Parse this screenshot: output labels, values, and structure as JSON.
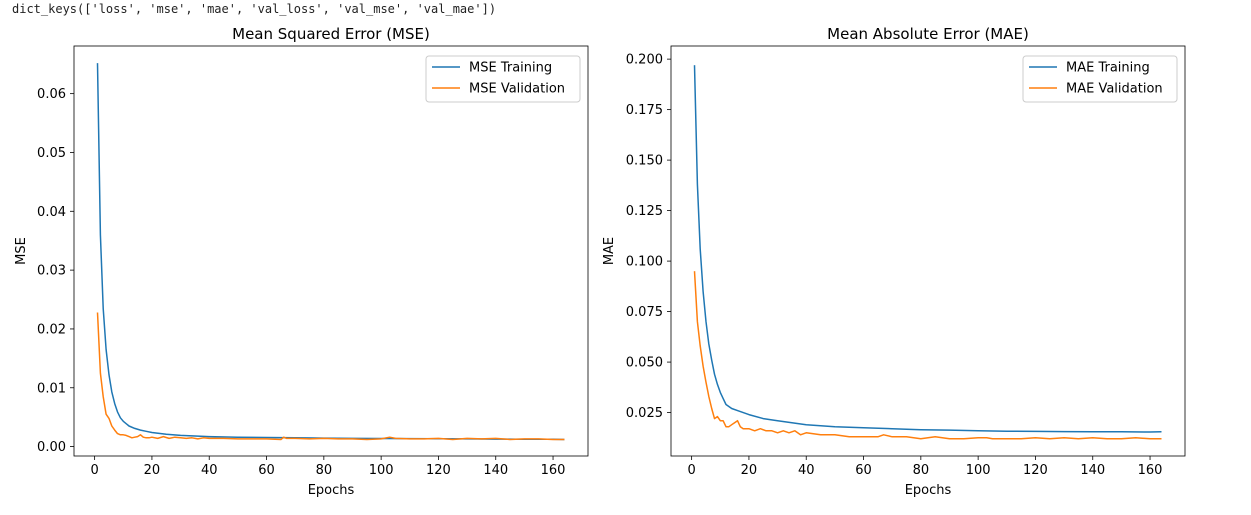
{
  "output_text": "dict_keys(['loss', 'mse', 'mae', 'val_loss', 'val_mse', 'val_mae'])",
  "colors": {
    "training": "#1f77b4",
    "validation": "#ff7f0e"
  },
  "chart_data": [
    {
      "type": "line",
      "title": "Mean Squared Error (MSE)",
      "xlabel": "Epochs",
      "ylabel": "MSE",
      "xlim": [
        -7.2,
        172.2
      ],
      "ylim": [
        -0.0016,
        0.0681
      ],
      "xticks": [
        0,
        20,
        40,
        60,
        80,
        100,
        120,
        140,
        160
      ],
      "yticks": [
        0.0,
        0.01,
        0.02,
        0.03,
        0.04,
        0.05,
        0.06
      ],
      "ytick_labels": [
        "0.00",
        "0.01",
        "0.02",
        "0.03",
        "0.04",
        "0.05",
        "0.06"
      ],
      "legend_position": "top-right",
      "grid": false,
      "series": [
        {
          "name": "MSE Training",
          "color": "#1f77b4",
          "x": [
            1,
            2,
            3,
            4,
            5,
            6,
            7,
            8,
            9,
            10,
            12,
            14,
            16,
            18,
            20,
            25,
            30,
            40,
            50,
            60,
            70,
            80,
            90,
            100,
            110,
            120,
            130,
            140,
            150,
            160,
            164
          ],
          "y": [
            0.0652,
            0.036,
            0.0235,
            0.0165,
            0.0122,
            0.0093,
            0.0073,
            0.0059,
            0.0049,
            0.0043,
            0.0035,
            0.0031,
            0.0028,
            0.0026,
            0.0024,
            0.0021,
            0.0019,
            0.0017,
            0.0016,
            0.00155,
            0.0015,
            0.00145,
            0.0014,
            0.00138,
            0.00135,
            0.00132,
            0.0013,
            0.00128,
            0.00126,
            0.00124,
            0.0012
          ]
        },
        {
          "name": "MSE Validation",
          "color": "#ff7f0e",
          "x": [
            1,
            2,
            3,
            4,
            5,
            6,
            7,
            8,
            9,
            10,
            11,
            12,
            13,
            14,
            15,
            16,
            17,
            18,
            19,
            20,
            22,
            24,
            26,
            28,
            30,
            32,
            34,
            36,
            38,
            40,
            45,
            50,
            55,
            60,
            65,
            66,
            67,
            70,
            75,
            80,
            85,
            90,
            95,
            100,
            103,
            105,
            110,
            115,
            120,
            125,
            130,
            135,
            140,
            145,
            150,
            155,
            160,
            164
          ],
          "y": [
            0.0228,
            0.0125,
            0.0085,
            0.0055,
            0.0048,
            0.0035,
            0.0028,
            0.0022,
            0.002,
            0.002,
            0.0019,
            0.0017,
            0.0015,
            0.0016,
            0.0017,
            0.002,
            0.0016,
            0.0015,
            0.0015,
            0.0016,
            0.0014,
            0.0017,
            0.0014,
            0.0016,
            0.0015,
            0.0014,
            0.0015,
            0.0013,
            0.0015,
            0.0014,
            0.0014,
            0.0013,
            0.0013,
            0.0013,
            0.0012,
            0.0016,
            0.0014,
            0.0014,
            0.0013,
            0.0014,
            0.0013,
            0.0013,
            0.0012,
            0.0013,
            0.0016,
            0.0014,
            0.0013,
            0.0013,
            0.0014,
            0.0012,
            0.0014,
            0.0013,
            0.0014,
            0.0012,
            0.0013,
            0.0013,
            0.0012,
            0.0012
          ]
        }
      ]
    },
    {
      "type": "line",
      "title": "Mean Absolute Error (MAE)",
      "xlabel": "Epochs",
      "ylabel": "MAE",
      "xlim": [
        -7.2,
        172.2
      ],
      "ylim": [
        0.0035,
        0.2065
      ],
      "xticks": [
        0,
        20,
        40,
        60,
        80,
        100,
        120,
        140,
        160
      ],
      "yticks": [
        0.025,
        0.05,
        0.075,
        0.1,
        0.125,
        0.15,
        0.175,
        0.2
      ],
      "ytick_labels": [
        "0.025",
        "0.050",
        "0.075",
        "0.100",
        "0.125",
        "0.150",
        "0.175",
        "0.200"
      ],
      "legend_position": "top-right",
      "grid": false,
      "series": [
        {
          "name": "MAE Training",
          "color": "#1f77b4",
          "x": [
            1,
            2,
            3,
            4,
            5,
            6,
            7,
            8,
            9,
            10,
            11,
            12,
            14,
            16,
            18,
            20,
            25,
            30,
            35,
            40,
            45,
            50,
            60,
            70,
            80,
            90,
            100,
            110,
            120,
            130,
            140,
            150,
            160,
            164
          ],
          "y": [
            0.197,
            0.138,
            0.106,
            0.085,
            0.07,
            0.059,
            0.051,
            0.044,
            0.039,
            0.035,
            0.032,
            0.029,
            0.027,
            0.026,
            0.025,
            0.024,
            0.022,
            0.021,
            0.02,
            0.019,
            0.0185,
            0.018,
            0.0175,
            0.017,
            0.0165,
            0.0163,
            0.016,
            0.0158,
            0.0157,
            0.0156,
            0.0155,
            0.0155,
            0.0154,
            0.0155
          ]
        },
        {
          "name": "MAE Validation",
          "color": "#ff7f0e",
          "x": [
            1,
            2,
            3,
            4,
            5,
            6,
            7,
            8,
            9,
            10,
            11,
            12,
            13,
            14,
            15,
            16,
            17,
            18,
            19,
            20,
            22,
            24,
            26,
            28,
            30,
            32,
            34,
            36,
            38,
            40,
            45,
            50,
            55,
            60,
            65,
            67,
            70,
            75,
            80,
            85,
            90,
            95,
            100,
            103,
            105,
            110,
            115,
            120,
            125,
            130,
            135,
            140,
            145,
            150,
            155,
            160,
            164
          ],
          "y": [
            0.095,
            0.07,
            0.058,
            0.048,
            0.04,
            0.033,
            0.027,
            0.022,
            0.023,
            0.021,
            0.021,
            0.018,
            0.018,
            0.019,
            0.02,
            0.021,
            0.018,
            0.017,
            0.017,
            0.017,
            0.016,
            0.017,
            0.016,
            0.016,
            0.015,
            0.016,
            0.015,
            0.016,
            0.014,
            0.015,
            0.014,
            0.014,
            0.013,
            0.013,
            0.013,
            0.014,
            0.013,
            0.013,
            0.012,
            0.013,
            0.012,
            0.012,
            0.0125,
            0.0125,
            0.012,
            0.012,
            0.012,
            0.0125,
            0.012,
            0.0125,
            0.012,
            0.0125,
            0.012,
            0.012,
            0.0125,
            0.012,
            0.012
          ]
        }
      ]
    }
  ]
}
